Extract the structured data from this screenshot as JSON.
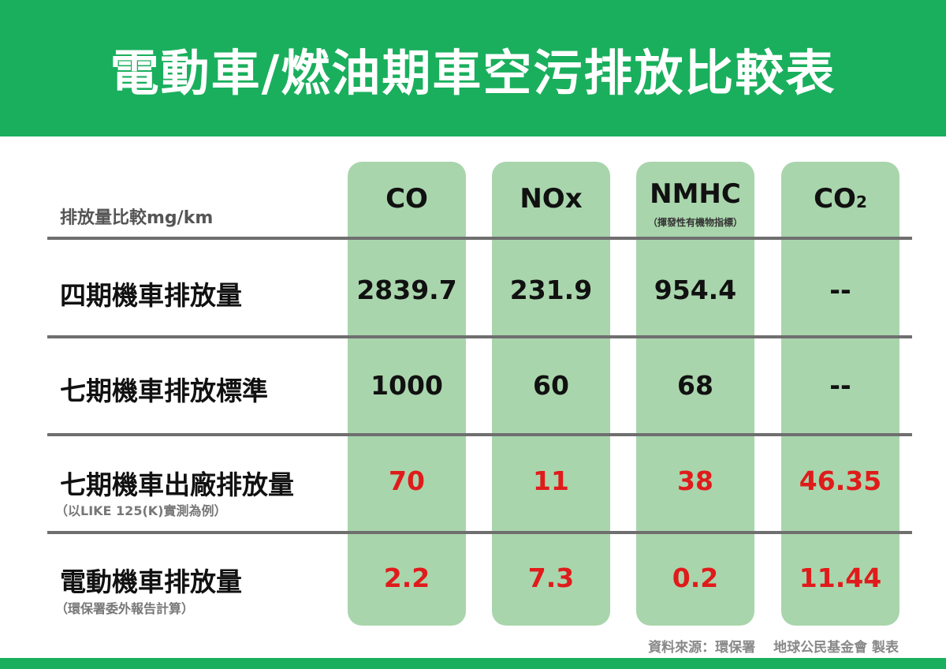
{
  "title": "電動車/燃油期車空污排放比較表",
  "unit_label": "排放量比較mg/km",
  "columns": [
    {
      "label": "CO",
      "sub": ""
    },
    {
      "label": "NOx",
      "sub": ""
    },
    {
      "label": "NMHC",
      "sub": "（揮發性有機物指標）"
    },
    {
      "label": "CO",
      "label_sub": "2",
      "sub": ""
    }
  ],
  "rows": [
    {
      "label": "四期機車排放量",
      "note": "",
      "values": [
        "2839.7",
        "231.9",
        "954.4",
        "--"
      ]
    },
    {
      "label": "七期機車排放標準",
      "note": "",
      "values": [
        "1000",
        "60",
        "68",
        "--"
      ]
    },
    {
      "label": "七期機車出廠排放量",
      "note": "（以LIKE 125(K)實測為例）",
      "values": [
        "70",
        "11",
        "38",
        "46.35"
      ]
    },
    {
      "label": "電動機車排放量",
      "note": "（環保署委外報告計算）",
      "values": [
        "2.2",
        "7.3",
        "0.2",
        "11.44"
      ]
    }
  ],
  "source": "資料來源：環保署　 地球公民基金會 製表",
  "colors": {
    "header_green": "#1aaf5d",
    "column_green": "#a9d5ac",
    "highlight_red": "#e01b1b"
  },
  "chart_data": {
    "type": "table",
    "title": "電動車/燃油期車空污排放比較表",
    "unit": "mg/km",
    "columns": [
      "CO",
      "NOx",
      "NMHC",
      "CO2"
    ],
    "rows": [
      {
        "name": "四期機車排放量",
        "values": [
          2839.7,
          231.9,
          954.4,
          null
        ]
      },
      {
        "name": "七期機車排放標準",
        "values": [
          1000,
          60,
          68,
          null
        ]
      },
      {
        "name": "七期機車出廠排放量",
        "values": [
          70,
          11,
          38,
          46.35
        ]
      },
      {
        "name": "電動機車排放量",
        "values": [
          2.2,
          7.3,
          0.2,
          11.44
        ]
      }
    ]
  }
}
